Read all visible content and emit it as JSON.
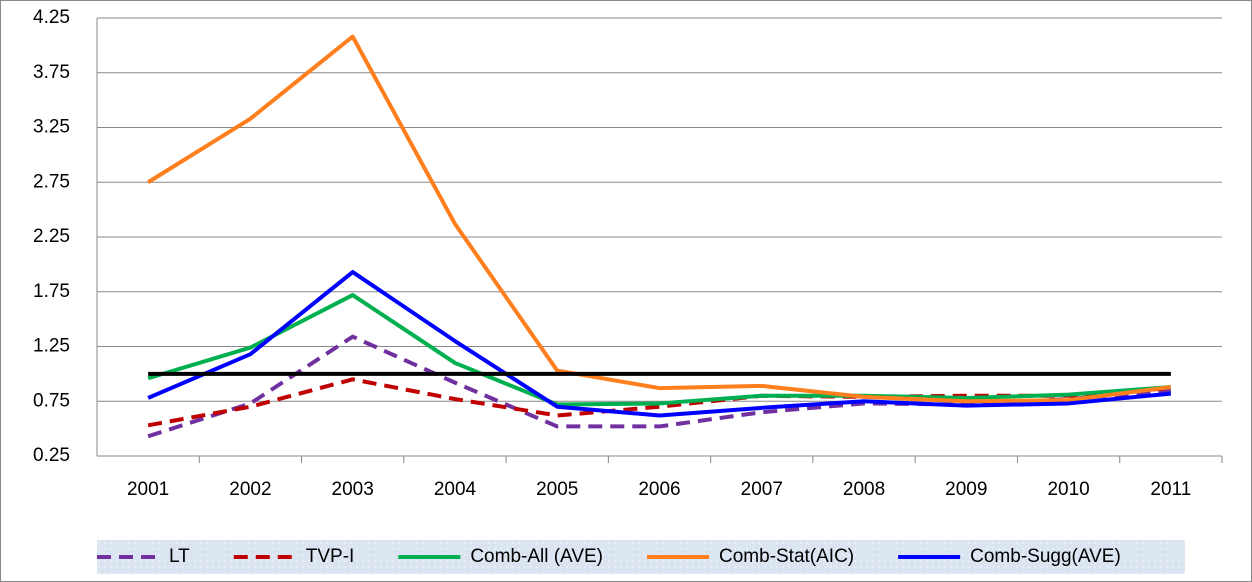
{
  "chart_data": {
    "type": "line",
    "categories": [
      "2001",
      "2002",
      "2003",
      "2004",
      "2005",
      "2006",
      "2007",
      "2008",
      "2009",
      "2010",
      "2011"
    ],
    "series": [
      {
        "name": "LT",
        "color": "#7030a0",
        "dashed": true,
        "values": [
          0.43,
          0.73,
          1.34,
          0.92,
          0.52,
          0.52,
          0.65,
          0.73,
          0.72,
          0.77,
          0.85
        ]
      },
      {
        "name": "TVP-I",
        "color": "#c00000",
        "dashed": true,
        "values": [
          0.53,
          0.7,
          0.95,
          0.77,
          0.62,
          0.7,
          0.8,
          0.79,
          0.8,
          0.8,
          0.87
        ]
      },
      {
        "name": "Comb-All (AVE)",
        "color": "#00b050",
        "dashed": false,
        "values": [
          0.96,
          1.24,
          1.72,
          1.1,
          0.72,
          0.73,
          0.8,
          0.8,
          0.78,
          0.81,
          0.88
        ]
      },
      {
        "name": "Comb-Stat(AIC)",
        "color": "#ff7f1e",
        "dashed": false,
        "values": [
          2.75,
          3.33,
          4.08,
          2.37,
          1.03,
          0.87,
          0.89,
          0.79,
          0.75,
          0.76,
          0.88
        ]
      },
      {
        "name": "Comb-Sugg(AVE)",
        "color": "#0000ff",
        "dashed": false,
        "values": [
          0.78,
          1.18,
          1.93,
          1.3,
          0.7,
          0.62,
          0.69,
          0.75,
          0.71,
          0.73,
          0.82
        ]
      },
      {
        "color": "#000000",
        "dashed": false,
        "values": [
          1.0,
          1.0,
          1.0,
          1.0,
          1.0,
          1.0,
          1.0,
          1.0,
          1.0,
          1.0,
          1.0
        ]
      }
    ],
    "ylim": [
      0.25,
      4.25
    ],
    "yticks": [
      0.25,
      0.75,
      1.25,
      1.75,
      2.25,
      2.75,
      3.25,
      3.75,
      4.25
    ],
    "grid": true,
    "legend": "bottom"
  }
}
